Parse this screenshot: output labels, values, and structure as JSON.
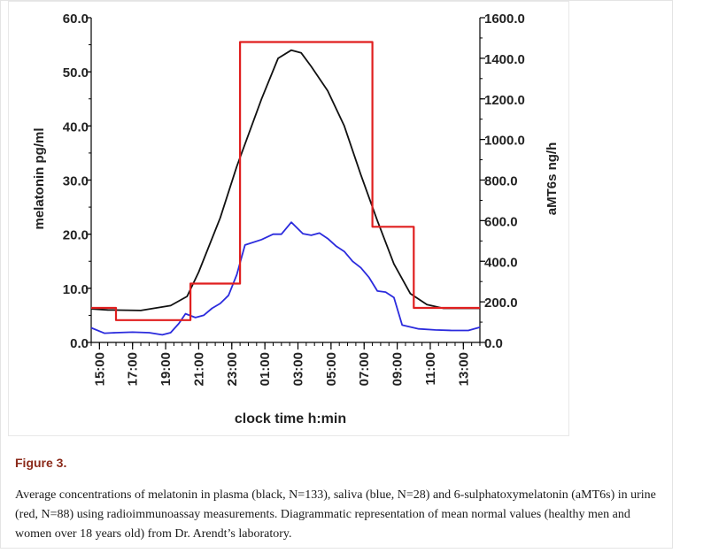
{
  "figure": {
    "label": "Figure 3.",
    "caption": "Average concentrations of melatonin in plasma (black, N=133), saliva (blue, N=28) and 6-sulphatoxymelatonin (aMT6s) in urine (red, N=88) using radioimmunoassay measurements. Diagrammatic representation of mean normal values (healthy men and women over 18 years old) from Dr. Arendt’s laboratory."
  },
  "chart_data": {
    "type": "line",
    "title": "",
    "xlabel": "clock time h:min",
    "ylabel_left": "melatonin pg/ml",
    "ylabel_right": "aMT6s ng/h",
    "x_axis": {
      "min": 14.5,
      "max": 38.0,
      "tick_labels": [
        "15:00",
        "17:00",
        "19:00",
        "21:00",
        "23:00",
        "01:00",
        "03:00",
        "05:00",
        "07:00",
        "09:00",
        "11:00",
        "13:00"
      ],
      "tick_values": [
        15,
        17,
        19,
        21,
        23,
        25,
        27,
        29,
        31,
        33,
        35,
        37
      ]
    },
    "ylim_left": [
      0,
      60
    ],
    "yticks_left": [
      "0.0",
      "10.0",
      "20.0",
      "30.0",
      "40.0",
      "50.0",
      "60.0"
    ],
    "ylim_right": [
      0,
      1600
    ],
    "yticks_right": [
      "0.0",
      "200.0",
      "400.0",
      "600.0",
      "800.0",
      "1000.0",
      "1200.0",
      "1400.0",
      "1600.0"
    ],
    "grid": false,
    "series": [
      {
        "axis": "left",
        "color": "#111111",
        "points": [
          [
            14.5,
            6.2
          ],
          [
            15.5,
            6.0
          ],
          [
            17.5,
            5.9
          ],
          [
            19.3,
            6.8
          ],
          [
            20.3,
            8.5
          ],
          [
            21.0,
            13.0
          ],
          [
            22.3,
            23.0
          ],
          [
            23.3,
            32.5
          ],
          [
            24.8,
            45.0
          ],
          [
            25.8,
            52.5
          ],
          [
            26.6,
            54.0
          ],
          [
            27.2,
            53.5
          ],
          [
            27.8,
            51.0
          ],
          [
            28.8,
            46.5
          ],
          [
            29.8,
            40.0
          ],
          [
            30.8,
            31.0
          ],
          [
            31.8,
            22.5
          ],
          [
            32.8,
            14.5
          ],
          [
            33.8,
            9.0
          ],
          [
            34.8,
            7.0
          ],
          [
            35.8,
            6.3
          ],
          [
            38.0,
            6.3
          ]
        ]
      },
      {
        "axis": "left",
        "color": "#2b2bdd",
        "points": [
          [
            14.5,
            2.7
          ],
          [
            15.3,
            1.7
          ],
          [
            16.0,
            1.8
          ],
          [
            17.0,
            1.9
          ],
          [
            18.0,
            1.8
          ],
          [
            18.8,
            1.4
          ],
          [
            19.3,
            1.8
          ],
          [
            19.8,
            3.5
          ],
          [
            20.2,
            5.3
          ],
          [
            20.8,
            4.6
          ],
          [
            21.3,
            5.0
          ],
          [
            21.8,
            6.3
          ],
          [
            22.3,
            7.2
          ],
          [
            22.8,
            8.7
          ],
          [
            23.3,
            12.5
          ],
          [
            23.8,
            18.0
          ],
          [
            24.8,
            19.0
          ],
          [
            25.5,
            20.0
          ],
          [
            26.0,
            20.0
          ],
          [
            26.6,
            22.2
          ],
          [
            27.3,
            20.1
          ],
          [
            27.8,
            19.8
          ],
          [
            28.3,
            20.2
          ],
          [
            28.8,
            19.2
          ],
          [
            29.3,
            17.8
          ],
          [
            29.8,
            16.8
          ],
          [
            30.3,
            15.0
          ],
          [
            30.8,
            13.8
          ],
          [
            31.3,
            12.0
          ],
          [
            31.8,
            9.5
          ],
          [
            32.3,
            9.3
          ],
          [
            32.8,
            8.3
          ],
          [
            33.3,
            3.2
          ],
          [
            34.3,
            2.5
          ],
          [
            35.3,
            2.3
          ],
          [
            36.3,
            2.2
          ],
          [
            37.3,
            2.2
          ],
          [
            38.0,
            2.8
          ]
        ]
      },
      {
        "axis": "right",
        "color": "#e01f1f",
        "step": true,
        "points": [
          [
            14.5,
            170
          ],
          [
            16.0,
            170
          ],
          [
            16.0,
            110
          ],
          [
            20.5,
            110
          ],
          [
            20.5,
            290
          ],
          [
            23.5,
            290
          ],
          [
            23.5,
            1480
          ],
          [
            31.5,
            1480
          ],
          [
            31.5,
            570
          ],
          [
            34.0,
            570
          ],
          [
            34.0,
            170
          ],
          [
            38.0,
            170
          ]
        ]
      }
    ]
  }
}
